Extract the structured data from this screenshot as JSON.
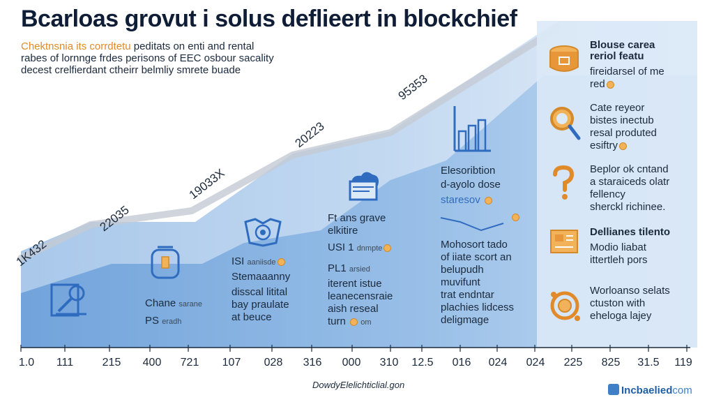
{
  "header": {
    "title": "Bcarloas grovut i solus deflieert in blockchief",
    "subtitle_lead": "Chektnsnia its corrdtetu",
    "subtitle_rest_1": " peditats on enti and rental",
    "subtitle_line_2": "rabes of lornnge frdes perisons of EEC osbour sacality",
    "subtitle_line_3": "decest crelfierdant ctheirr belmliy smrete buade"
  },
  "milestones": [
    "1K432",
    "22035",
    "19033X",
    "20223",
    "95353"
  ],
  "columns": [
    {
      "lines": [
        "Chane",
        "PS"
      ],
      "small": [
        "sarane",
        "eradh"
      ]
    },
    {
      "lines": [
        "ISI",
        "Stemaaanny",
        "disscal litital",
        "bay praulate",
        "at beuce"
      ],
      "small": [
        "aaniisde"
      ]
    },
    {
      "lines": [
        "Ft ans grave",
        "elkitire",
        "USI 1",
        "PL1",
        "iterent istue",
        "leanecensraie",
        "aish reseal",
        "turn"
      ],
      "small": [
        "dnmpte",
        "arsied",
        "om"
      ]
    },
    {
      "lines": [
        "Elesoribtion",
        "d-ayolo dose",
        "staresov",
        "Mohosort tado",
        "of iiate scort an",
        "belupudh",
        "muvifunt",
        "trat endntar",
        "plachies lidcess",
        "deligmage"
      ]
    }
  ],
  "sidebar": {
    "items": [
      {
        "title": "Blouse carea",
        "title_2": "reriol featu",
        "lines": [
          "fireidarsel of me",
          "red"
        ]
      },
      {
        "lines": [
          "Cate reyeor",
          "bistes inectub",
          "resal produted",
          "esiftry"
        ]
      },
      {
        "lines": [
          "Beplor ok cntand",
          "a staraiceds olatr",
          "fellency",
          "sherckl richinee."
        ]
      },
      {
        "title": "Dellianes tilento",
        "lines": [
          "Modio liabat",
          "ittertleh pors"
        ]
      },
      {
        "lines": [
          "Worloanso selats",
          "ctuston with",
          "eheloga lajey"
        ]
      }
    ]
  },
  "x_axis": [
    "1.0",
    "111",
    "215",
    "400",
    "721",
    "107",
    "028",
    "316",
    "000",
    "310",
    "12.5",
    "016",
    "024",
    "024",
    "225",
    "825",
    "31.5",
    "119"
  ],
  "footer": {
    "source": "DowdyElelichticlial.gon",
    "brand": "Incbaelied",
    "brand_suffix": "com"
  },
  "colors": {
    "area_light": "#dbe8f6",
    "area_mid": "#a9c8ea",
    "area_dark": "#6fa3db",
    "icon_blue": "#2f6cc0",
    "icon_orange": "#e08a2a"
  }
}
